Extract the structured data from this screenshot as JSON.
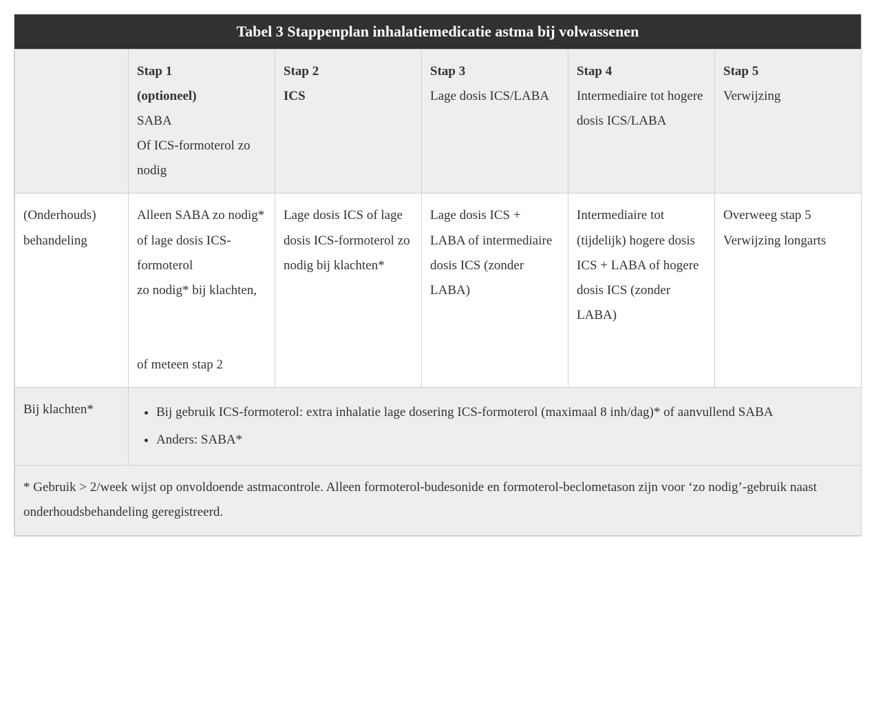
{
  "title": "Tabel 3 Stappenplan inhalatiemedicatie astma bij volwassenen",
  "colors": {
    "header_bg": "#313131",
    "header_fg": "#ffffff",
    "gray_bg": "#eeeeee",
    "white_bg": "#ffffff",
    "border": "#d0d0d0",
    "text": "#333333"
  },
  "headerRow": {
    "rowLabel": "",
    "steps": [
      {
        "label": "Stap 1",
        "sub_bold": "(optioneel)",
        "sub_plain": "SABA\nOf ICS-formoterol zo nodig"
      },
      {
        "label": "Stap 2",
        "sub_bold": "ICS",
        "sub_plain": ""
      },
      {
        "label": "Stap 3",
        "sub_bold": "",
        "sub_plain": "Lage dosis ICS/LABA"
      },
      {
        "label": "Stap 4",
        "sub_bold": "",
        "sub_plain": "Intermediaire tot hogere dosis ICS/LABA"
      },
      {
        "label": "Stap 5",
        "sub_bold": "",
        "sub_plain": "Verwijzing"
      }
    ]
  },
  "maintRow": {
    "rowLabel": "(Onderhouds) behandeling",
    "cells": [
      "Alleen SABA zo nodig* of lage dosis ICS-formoterol\nzo nodig* bij klachten,\n\nof meteen stap 2",
      "Lage dosis ICS of lage dosis ICS-formoterol zo nodig bij klachten*",
      "Lage dosis ICS + LABA of intermediaire dosis ICS (zonder LABA)",
      "Intermediaire tot (tijdelijk) hogere dosis ICS + LABA of hogere dosis ICS (zonder LABA)",
      "Overweeg stap 5 Verwijzing longarts"
    ]
  },
  "complaintsRow": {
    "rowLabel": "Bij klachten*",
    "bullets": [
      "Bij gebruik ICS-formoterol: extra inhalatie lage dosering ICS-formoterol (maximaal 8 inh/dag)* of aanvullend SABA",
      "Anders: SABA*"
    ]
  },
  "footnote": "* Gebruik > 2/week wijst op onvoldoende astmacontrole. Alleen formoterol-budesonide en formoterol-beclometason zijn voor ‘zo nodig’-gebruik naast onderhoudsbehandeling geregistreerd."
}
